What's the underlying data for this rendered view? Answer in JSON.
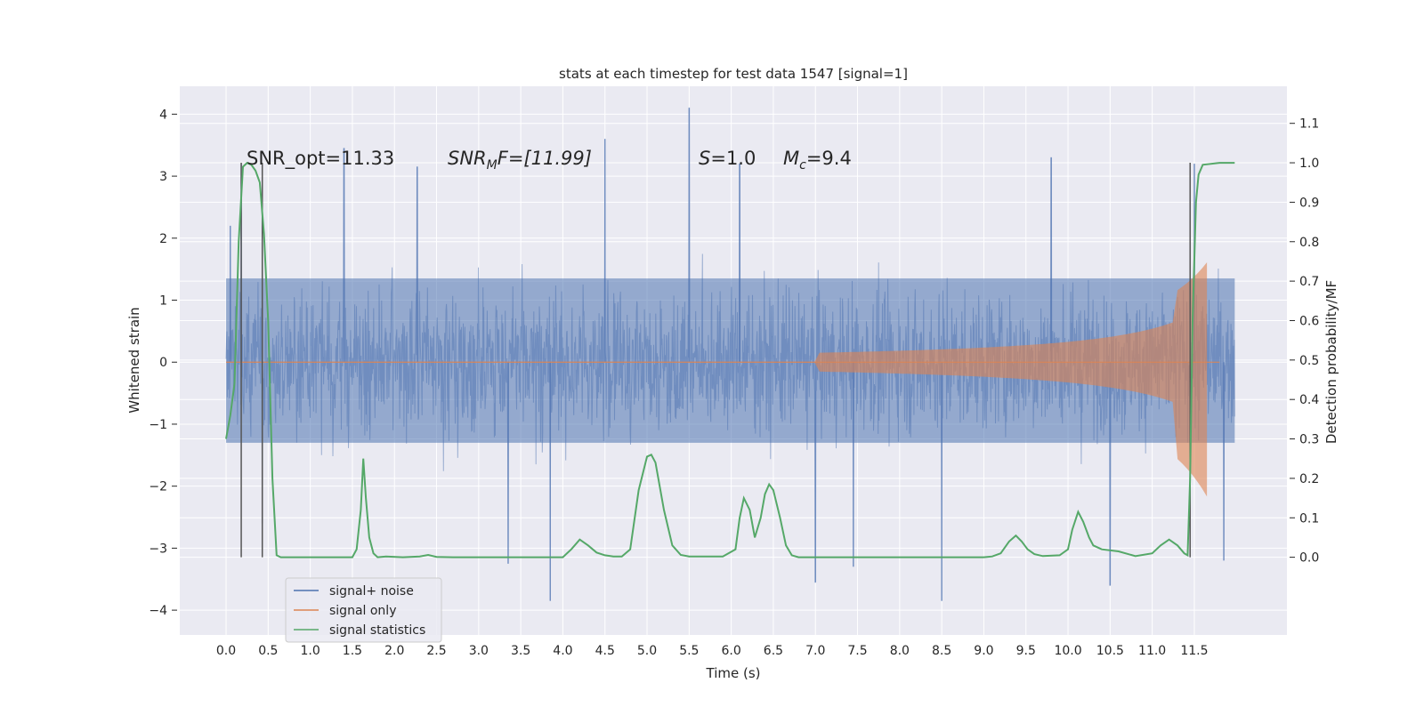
{
  "chart_data": {
    "type": "line",
    "title": "stats at each timestep for test data 1547 [signal=1]",
    "xlabel": "Time (s)",
    "ylabel_left": "Whitened strain",
    "ylabel_right": "Detection probability/MF",
    "xlim": [
      -0.55,
      12.6
    ],
    "ylim_left": [
      -4.4,
      4.45
    ],
    "ylim_right": [
      -0.197,
      1.194
    ],
    "x_ticks": [
      "0.0",
      "0.5",
      "1.0",
      "1.5",
      "2.0",
      "2.5",
      "3.0",
      "3.5",
      "4.0",
      "4.5",
      "5.0",
      "5.5",
      "6.0",
      "6.5",
      "7.0",
      "7.5",
      "8.0",
      "8.5",
      "9.0",
      "9.5",
      "10.0",
      "10.5",
      "11.0",
      "11.5"
    ],
    "y_left_ticks": [
      "4",
      "3",
      "2",
      "1",
      "0",
      "−1",
      "−2",
      "−3",
      "−4"
    ],
    "y_right_ticks": [
      "1.1",
      "1.0",
      "0.9",
      "0.8",
      "0.7",
      "0.6",
      "0.5",
      "0.4",
      "0.3",
      "0.2",
      "0.1",
      "0.0"
    ],
    "grid": true,
    "legend_placement": "lower-left",
    "annotations": {
      "snr_opt": "SNR_opt=11.33",
      "snr_mf_sym": "SNR",
      "snr_mf_sub": "M",
      "snr_mf_rest": "F=[11.99]",
      "s_sym": "S",
      "s_rest": "=1.0",
      "mc_sym": "M",
      "mc_sub": "c",
      "mc_rest": "=9.4"
    },
    "series": [
      {
        "name": "signal+ noise",
        "color": "#4c72b0",
        "axis": "left",
        "x_range": [
          0.0,
          11.98
        ],
        "core_band": [
          -1.3,
          1.35
        ],
        "envelope_peaks": [
          {
            "x": 0.05,
            "y": 2.2
          },
          {
            "x": 0.18,
            "y": 3.2
          },
          {
            "x": 0.43,
            "y": -2.6
          },
          {
            "x": 1.4,
            "y": 3.45
          },
          {
            "x": 2.27,
            "y": 3.15
          },
          {
            "x": 3.35,
            "y": -3.25
          },
          {
            "x": 3.85,
            "y": -3.85
          },
          {
            "x": 4.5,
            "y": 3.6
          },
          {
            "x": 5.5,
            "y": 4.1
          },
          {
            "x": 6.1,
            "y": 3.2
          },
          {
            "x": 7.0,
            "y": -3.55
          },
          {
            "x": 7.45,
            "y": -3.3
          },
          {
            "x": 8.5,
            "y": -3.85
          },
          {
            "x": 9.8,
            "y": 3.3
          },
          {
            "x": 10.5,
            "y": -3.6
          },
          {
            "x": 11.5,
            "y": 3.2
          },
          {
            "x": 11.85,
            "y": -3.2
          }
        ]
      },
      {
        "name": "signal only",
        "color": "#dd8452",
        "axis": "left",
        "chirp_start": 7.0,
        "merger_time": 11.65,
        "peak_positive": 1.3,
        "peak_negative": -1.75,
        "ringdown_end": 11.8
      },
      {
        "name": "signal statistics",
        "color": "#55a868",
        "axis": "right",
        "x": [
          0.0,
          0.05,
          0.1,
          0.15,
          0.2,
          0.25,
          0.3,
          0.35,
          0.4,
          0.45,
          0.5,
          0.55,
          0.6,
          0.65,
          0.7,
          0.8,
          1.0,
          1.2,
          1.5,
          1.55,
          1.6,
          1.63,
          1.66,
          1.7,
          1.75,
          1.8,
          1.9,
          2.1,
          2.3,
          2.4,
          2.5,
          2.7,
          3.0,
          3.5,
          4.0,
          4.1,
          4.2,
          4.3,
          4.4,
          4.5,
          4.6,
          4.7,
          4.8,
          4.9,
          5.0,
          5.05,
          5.1,
          5.2,
          5.3,
          5.4,
          5.5,
          5.7,
          5.9,
          6.05,
          6.1,
          6.15,
          6.22,
          6.28,
          6.35,
          6.4,
          6.45,
          6.5,
          6.58,
          6.65,
          6.72,
          6.8,
          6.9,
          7.1,
          7.5,
          8.0,
          8.5,
          9.0,
          9.1,
          9.2,
          9.3,
          9.38,
          9.45,
          9.52,
          9.6,
          9.7,
          9.9,
          10.0,
          10.05,
          10.12,
          10.18,
          10.25,
          10.3,
          10.4,
          10.6,
          10.8,
          11.0,
          11.1,
          11.2,
          11.3,
          11.38,
          11.42,
          11.45,
          11.48,
          11.52,
          11.55,
          11.6,
          11.8,
          11.98
        ],
        "values": [
          0.3,
          0.36,
          0.44,
          0.8,
          0.99,
          1.0,
          0.995,
          0.98,
          0.95,
          0.82,
          0.6,
          0.2,
          0.005,
          0.0,
          0.0,
          0.0,
          0.0,
          0.0,
          0.0,
          0.02,
          0.12,
          0.25,
          0.15,
          0.05,
          0.01,
          0.0,
          0.002,
          0.0,
          0.002,
          0.006,
          0.001,
          0.0,
          0.0,
          0.0,
          0.0,
          0.02,
          0.045,
          0.03,
          0.012,
          0.005,
          0.002,
          0.002,
          0.02,
          0.17,
          0.255,
          0.26,
          0.24,
          0.12,
          0.03,
          0.006,
          0.002,
          0.002,
          0.002,
          0.02,
          0.1,
          0.15,
          0.12,
          0.05,
          0.1,
          0.16,
          0.185,
          0.17,
          0.1,
          0.03,
          0.005,
          0.0,
          0.0,
          0.0,
          0.0,
          0.0,
          0.0,
          0.0,
          0.002,
          0.01,
          0.04,
          0.055,
          0.04,
          0.02,
          0.008,
          0.003,
          0.005,
          0.02,
          0.07,
          0.115,
          0.09,
          0.05,
          0.03,
          0.02,
          0.015,
          0.003,
          0.01,
          0.03,
          0.045,
          0.03,
          0.01,
          0.005,
          0.2,
          0.6,
          0.9,
          0.97,
          0.995,
          1.0,
          1.0
        ]
      }
    ],
    "vertical_markers": [
      0.18,
      0.43,
      11.45
    ]
  }
}
